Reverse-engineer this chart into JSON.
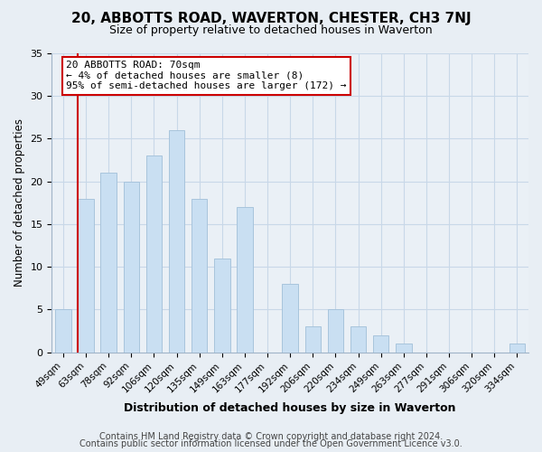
{
  "title": "20, ABBOTTS ROAD, WAVERTON, CHESTER, CH3 7NJ",
  "subtitle": "Size of property relative to detached houses in Waverton",
  "xlabel": "Distribution of detached houses by size in Waverton",
  "ylabel": "Number of detached properties",
  "categories": [
    "49sqm",
    "63sqm",
    "78sqm",
    "92sqm",
    "106sqm",
    "120sqm",
    "135sqm",
    "149sqm",
    "163sqm",
    "177sqm",
    "192sqm",
    "206sqm",
    "220sqm",
    "234sqm",
    "249sqm",
    "263sqm",
    "277sqm",
    "291sqm",
    "306sqm",
    "320sqm",
    "334sqm"
  ],
  "values": [
    5,
    18,
    21,
    20,
    23,
    26,
    18,
    11,
    17,
    0,
    8,
    3,
    5,
    3,
    2,
    1,
    0,
    0,
    0,
    0,
    1
  ],
  "bar_color": "#c9dff2",
  "bar_edge_color": "#a8c4dc",
  "redline_index": 1,
  "annotation_title": "20 ABBOTTS ROAD: 70sqm",
  "annotation_line1": "← 4% of detached houses are smaller (8)",
  "annotation_line2": "95% of semi-detached houses are larger (172) →",
  "annotation_box_color": "#ffffff",
  "annotation_box_edgecolor": "#cc0000",
  "redline_color": "#cc0000",
  "ylim": [
    0,
    35
  ],
  "footer1": "Contains HM Land Registry data © Crown copyright and database right 2024.",
  "footer2": "Contains public sector information licensed under the Open Government Licence v3.0.",
  "background_color": "#e8eef4",
  "plot_background_color": "#eaf0f6",
  "grid_color": "#c8d8e8",
  "title_fontsize": 11,
  "subtitle_fontsize": 9,
  "footer_fontsize": 7,
  "ylabel_fontsize": 8.5,
  "xlabel_fontsize": 9,
  "tick_fontsize": 7.5,
  "ytick_fontsize": 8
}
